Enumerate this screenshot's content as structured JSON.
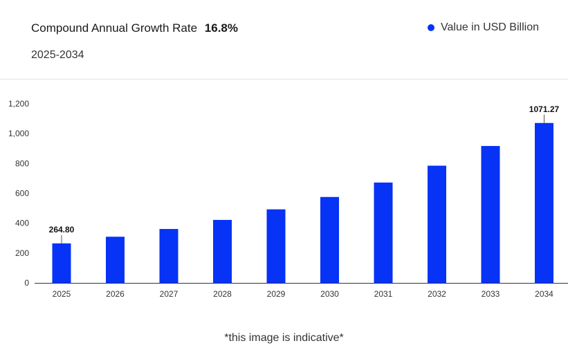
{
  "header": {
    "cagr_label": "Compound Annual Growth Rate",
    "cagr_value": "16.8%",
    "period": "2025-2034",
    "legend_label": "Value in USD Billion"
  },
  "colors": {
    "bar": "#0633f5",
    "axis": "#333333"
  },
  "chart_data": {
    "type": "bar",
    "categories": [
      "2025",
      "2026",
      "2027",
      "2028",
      "2029",
      "2030",
      "2031",
      "2032",
      "2033",
      "2034"
    ],
    "series": [
      {
        "name": "Value in USD Billion",
        "values": [
          264.8,
          309.3,
          361.2,
          421.9,
          492.8,
          575.6,
          672.3,
          785.2,
          917.1,
          1071.27
        ]
      }
    ],
    "data_labels": [
      {
        "index": 0,
        "text": "264.80"
      },
      {
        "index": 9,
        "text": "1071.27"
      }
    ],
    "ylim": [
      0,
      1200
    ],
    "yticks": [
      0,
      200,
      400,
      600,
      800,
      1000,
      1200
    ],
    "ytick_labels": [
      "0",
      "200",
      "400",
      "600",
      "800",
      "1,000",
      "1,200"
    ],
    "grid": false
  },
  "footer": {
    "note": "*this image is indicative*"
  }
}
